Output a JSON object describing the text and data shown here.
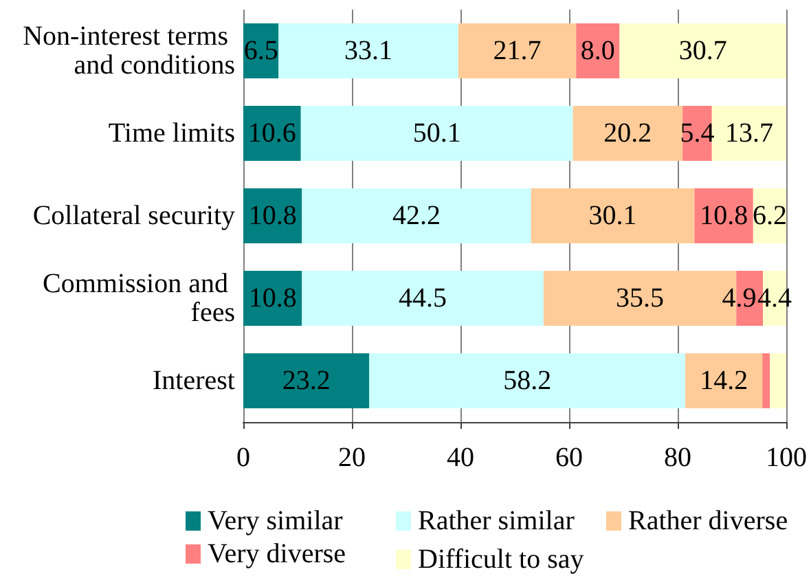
{
  "chart_data": {
    "type": "bar",
    "orientation": "horizontal",
    "stacked": true,
    "categories": [
      "Non-interest terms and conditions",
      "Time limits",
      "Collateral security",
      "Commission and fees",
      "Interest"
    ],
    "series": [
      {
        "name": "Very similar",
        "color": "#008080",
        "values": [
          6.5,
          10.6,
          10.8,
          10.8,
          23.2
        ],
        "value_labels": [
          "6.5",
          "10.6",
          "10.8",
          "10.8",
          "23.2"
        ]
      },
      {
        "name": "Rather similar",
        "color": "#ccffff",
        "values": [
          33.1,
          50.1,
          42.2,
          44.5,
          58.2
        ],
        "value_labels": [
          "33.1",
          "50.1",
          "42.2",
          "44.5",
          "58.2"
        ]
      },
      {
        "name": "Rather diverse",
        "color": "#ffcc99",
        "values": [
          21.7,
          20.2,
          30.1,
          35.5,
          14.2
        ],
        "value_labels": [
          "21.7",
          "20.2",
          "30.1",
          "35.5",
          "14.2"
        ]
      },
      {
        "name": "Very diverse",
        "color": "#ff8080",
        "values": [
          8.0,
          5.4,
          10.8,
          4.9,
          1.4
        ],
        "value_labels": [
          "8.0",
          "5.4",
          "10.8",
          "4.9",
          null
        ]
      },
      {
        "name": "Difficult to say",
        "color": "#ffffcc",
        "values": [
          30.7,
          13.7,
          6.2,
          4.4,
          3.0
        ],
        "value_labels": [
          "30.7",
          "13.7",
          "6.2",
          "4.4",
          null
        ]
      }
    ],
    "xlim": [
      0,
      100
    ],
    "xticks": [
      0,
      20,
      40,
      60,
      80,
      100
    ],
    "grid": "x",
    "legend": "bottom"
  }
}
